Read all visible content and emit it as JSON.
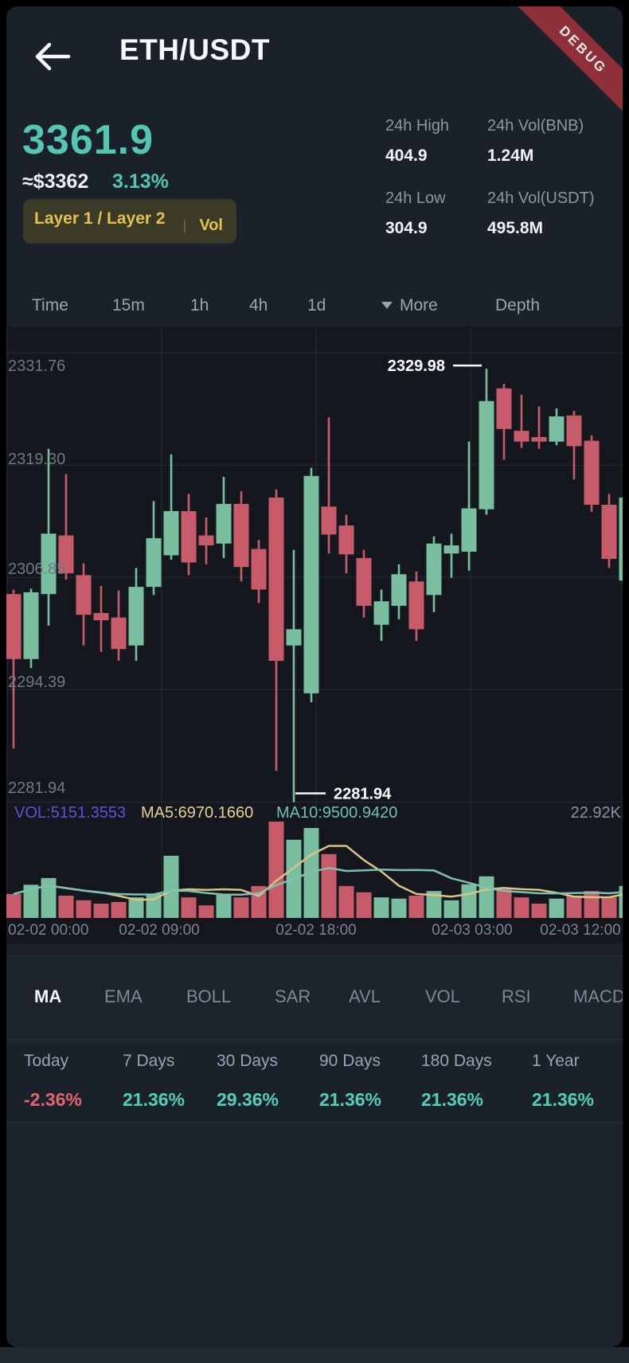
{
  "header": {
    "title": "ETH/USDT",
    "debug_ribbon": "DEBUG"
  },
  "ticker": {
    "last_price": "3361.9",
    "approx_fiat": "≈$3362",
    "change_percent": "3.13%",
    "category_tag": "Layer 1 / Layer 2",
    "vol_tag": "Vol",
    "stats": [
      {
        "label": "24h High",
        "value": "404.9"
      },
      {
        "label": "24h Vol(BNB)",
        "value": "1.24M"
      },
      {
        "label": "24h Low",
        "value": "304.9"
      },
      {
        "label": "24h Vol(USDT)",
        "value": "495.8M"
      }
    ]
  },
  "timeframe_bar": {
    "tabs": [
      "Time",
      "15m",
      "1h",
      "4h",
      "1d"
    ],
    "more": "More",
    "depth": "Depth"
  },
  "chart_data": {
    "type": "candlestick+volume",
    "pair": "ETH/USDT",
    "y_axis_labels": [
      "2331.76",
      "2319.30",
      "2306.85",
      "2294.39",
      "2281.94"
    ],
    "y_axis_values": [
      2331.76,
      2319.305,
      2306.85,
      2294.395,
      2281.94
    ],
    "x_axis_labels": [
      "02-02 00:00",
      "02-02 09:00",
      "02-02 18:00",
      "02-03 03:00",
      "02-03 12:00"
    ],
    "annotations": {
      "high": {
        "label": "2329.98",
        "index": 27,
        "value": 2329.98
      },
      "low": {
        "label": "2281.94",
        "index": 16,
        "value": 2281.94
      }
    },
    "volume_header": {
      "vol": "VOL:5151.3553",
      "ma5": "MA5:6970.1660",
      "ma10": "MA10:9500.9420",
      "max": "22.92K"
    },
    "volume_axis_max": 22.92,
    "candles": [
      [
        2305.0,
        2305.5,
        2287.9,
        2297.8,
        5.7
      ],
      [
        2297.8,
        2305.6,
        2296.8,
        2305.2,
        7.9
      ],
      [
        2305.0,
        2321.1,
        2301.5,
        2311.7,
        9.5
      ],
      [
        2311.5,
        2318.3,
        2306.6,
        2307.3,
        5.3
      ],
      [
        2307.1,
        2308.4,
        2299.3,
        2302.7,
        4.2
      ],
      [
        2302.9,
        2305.9,
        2298.6,
        2302.1,
        3.4
      ],
      [
        2302.4,
        2305.4,
        2297.6,
        2298.9,
        3.8
      ],
      [
        2299.3,
        2307.9,
        2297.6,
        2305.8,
        4.9
      ],
      [
        2305.8,
        2315.3,
        2304.9,
        2311.2,
        5.7
      ],
      [
        2309.3,
        2320.5,
        2308.8,
        2314.2,
        14.8
      ],
      [
        2314.2,
        2316.1,
        2307.1,
        2308.5,
        4.9
      ],
      [
        2311.5,
        2313.5,
        2308.3,
        2310.4,
        3.0
      ],
      [
        2310.6,
        2318.0,
        2309.0,
        2315.0,
        5.7
      ],
      [
        2315.0,
        2316.4,
        2306.4,
        2308.0,
        4.9
      ],
      [
        2310.0,
        2311.0,
        2304.0,
        2305.5,
        7.6
      ],
      [
        2315.7,
        2316.6,
        2285.4,
        2297.6,
        22.92
      ],
      [
        2299.3,
        2309.9,
        2281.94,
        2301.1,
        18.6
      ],
      [
        2294.0,
        2319.0,
        2293.0,
        2318.1,
        21.4
      ],
      [
        2314.7,
        2324.6,
        2309.5,
        2311.6,
        15.2
      ],
      [
        2312.6,
        2313.8,
        2307.3,
        2309.4,
        7.6
      ],
      [
        2309.0,
        2309.9,
        2302.4,
        2303.7,
        6.1
      ],
      [
        2301.6,
        2305.5,
        2299.8,
        2304.2,
        4.9
      ],
      [
        2303.7,
        2308.3,
        2302.2,
        2307.2,
        4.6
      ],
      [
        2306.4,
        2307.5,
        2299.8,
        2301.1,
        5.3
      ],
      [
        2304.9,
        2311.4,
        2303.0,
        2310.6,
        6.4
      ],
      [
        2309.5,
        2311.7,
        2306.8,
        2310.4,
        4.2
      ],
      [
        2309.7,
        2321.9,
        2307.6,
        2314.5,
        8.0
      ],
      [
        2314.4,
        2329.98,
        2313.8,
        2326.4,
        9.9
      ],
      [
        2327.8,
        2328.3,
        2319.9,
        2323.3,
        7.2
      ],
      [
        2323.1,
        2327.1,
        2321.2,
        2321.9,
        4.9
      ],
      [
        2322.4,
        2325.8,
        2321.1,
        2321.9,
        3.4
      ],
      [
        2321.9,
        2325.6,
        2321.5,
        2324.7,
        4.6
      ],
      [
        2324.8,
        2325.3,
        2317.7,
        2321.4,
        5.3
      ],
      [
        2322.0,
        2322.6,
        2314.1,
        2314.9,
        6.4
      ],
      [
        2314.9,
        2316.1,
        2307.9,
        2308.9,
        4.9
      ],
      [
        2306.5,
        2316.5,
        2305.5,
        2315.7,
        7.6
      ]
    ],
    "colors": {
      "up": "#79BE9F",
      "down": "#C75B69",
      "ma5_line": "#D9C386",
      "ma10_line": "#7FC0B0",
      "vol_label": "#5B54DD",
      "ma5_label": "#E3CF96",
      "ma10_label": "#6EC0B1",
      "grid": "#262C36",
      "axis_text": "#6E7889",
      "annotation": "#FFFFFF"
    },
    "legend_position": "top-left-of-volume-pane",
    "grid": true
  },
  "indicator_bar": {
    "tabs": [
      "MA",
      "EMA",
      "BOLL",
      "SAR",
      "AVL",
      "VOL",
      "RSI",
      "MACD"
    ],
    "active": "MA"
  },
  "performance": {
    "items": [
      {
        "label": "Today",
        "value": "-2.36%",
        "direction": "down"
      },
      {
        "label": "7 Days",
        "value": "21.36%",
        "direction": "up"
      },
      {
        "label": "30 Days",
        "value": "29.36%",
        "direction": "up"
      },
      {
        "label": "90 Days",
        "value": "21.36%",
        "direction": "up"
      },
      {
        "label": "180 Days",
        "value": "21.36%",
        "direction": "up"
      },
      {
        "label": "1 Year",
        "value": "21.36%",
        "direction": "up"
      }
    ]
  }
}
